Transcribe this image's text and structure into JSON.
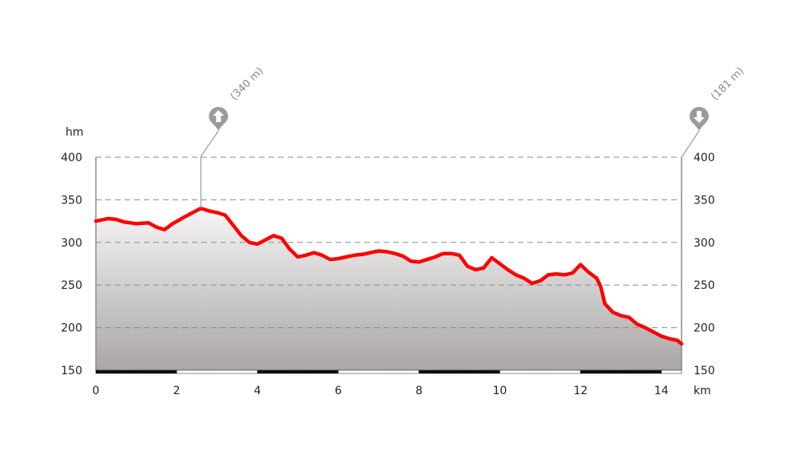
{
  "chart_data": {
    "type": "area",
    "y_unit": "hm",
    "x_unit": "km",
    "x_ticks": [
      "0",
      "2",
      "4",
      "6",
      "8",
      "10",
      "12",
      "14"
    ],
    "y_ticks": [
      "150",
      "200",
      "250",
      "300",
      "350",
      "400"
    ],
    "xlim": [
      0,
      14.5
    ],
    "ylim": [
      150,
      400
    ],
    "grid": true,
    "line_color": "#ff0000",
    "area_top_color": "#f6f5f5",
    "area_bottom_color": "#a9a6a5",
    "x": [
      0,
      0.3,
      0.5,
      0.7,
      1.0,
      1.3,
      1.5,
      1.7,
      1.9,
      2.2,
      2.4,
      2.6,
      2.8,
      3.0,
      3.2,
      3.4,
      3.6,
      3.8,
      4.0,
      4.2,
      4.4,
      4.6,
      4.8,
      5.0,
      5.2,
      5.4,
      5.6,
      5.8,
      6.0,
      6.2,
      6.4,
      6.6,
      6.8,
      7.0,
      7.2,
      7.4,
      7.6,
      7.8,
      8.0,
      8.2,
      8.4,
      8.6,
      8.8,
      9.0,
      9.2,
      9.4,
      9.6,
      9.8,
      10.0,
      10.2,
      10.4,
      10.6,
      10.8,
      11.0,
      11.2,
      11.4,
      11.6,
      11.8,
      12.0,
      12.2,
      12.4,
      12.5,
      12.6,
      12.8,
      13.0,
      13.2,
      13.4,
      13.6,
      13.8,
      14.0,
      14.2,
      14.4,
      14.5
    ],
    "elevation": [
      325,
      328,
      327,
      324,
      322,
      323,
      318,
      315,
      322,
      330,
      335,
      340,
      337,
      335,
      332,
      320,
      308,
      300,
      298,
      303,
      308,
      305,
      292,
      283,
      285,
      288,
      285,
      280,
      281,
      283,
      285,
      286,
      288,
      290,
      289,
      287,
      284,
      278,
      277,
      280,
      283,
      287,
      287,
      285,
      272,
      268,
      270,
      282,
      275,
      268,
      262,
      258,
      252,
      255,
      262,
      263,
      262,
      264,
      274,
      265,
      258,
      248,
      228,
      218,
      214,
      212,
      204,
      200,
      195,
      190,
      187,
      185,
      181
    ],
    "annotations": [
      {
        "label": "(340 m)",
        "x": 2.6,
        "y": 340,
        "kind": "max",
        "icon": "arrow-up-icon"
      },
      {
        "label": "(181 m)",
        "x": 14.5,
        "y": 181,
        "kind": "min",
        "icon": "arrow-down-icon"
      }
    ]
  }
}
